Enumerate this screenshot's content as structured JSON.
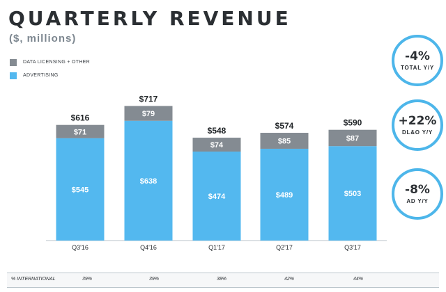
{
  "chart_data": {
    "type": "bar",
    "stacked": true,
    "title": "QUARTERLY REVENUE",
    "subtitle": "($, millions)",
    "categories": [
      "Q3'16",
      "Q4'16",
      "Q1'17",
      "Q2'17",
      "Q3'17"
    ],
    "series": [
      {
        "name": "ADVERTISING",
        "values": [
          545,
          638,
          474,
          489,
          503
        ],
        "labels": [
          "$545",
          "$638",
          "$474",
          "$489",
          "$503"
        ],
        "color": "#53b8ef"
      },
      {
        "name": "DATA LICENSING + OTHER",
        "values": [
          71,
          79,
          74,
          85,
          87
        ],
        "labels": [
          "$71",
          "$79",
          "$74",
          "$85",
          "$87"
        ],
        "color": "#848b92"
      }
    ],
    "totals": [
      616,
      717,
      548,
      574,
      590
    ],
    "total_labels": [
      "$616",
      "$717",
      "$548",
      "$574",
      "$590"
    ],
    "ylim": [
      0,
      760
    ],
    "legend_position": "top-left"
  },
  "legend": [
    {
      "label": "DATA LICENSING + OTHER",
      "color": "#848b92"
    },
    {
      "label": "ADVERTISING",
      "color": "#53b8ef"
    }
  ],
  "callouts": [
    {
      "value": "-4%",
      "label": "TOTAL Y/Y"
    },
    {
      "value": "+22%",
      "label": "DL&O Y/Y"
    },
    {
      "value": "-8%",
      "label": "AD Y/Y"
    }
  ],
  "international": {
    "label": "% INTERNATIONAL",
    "values": [
      "39%",
      "39%",
      "38%",
      "42%",
      "44%"
    ]
  },
  "colors": {
    "accent": "#4db6ea",
    "text": "#2b2f33",
    "subtitle": "#7d8790"
  }
}
